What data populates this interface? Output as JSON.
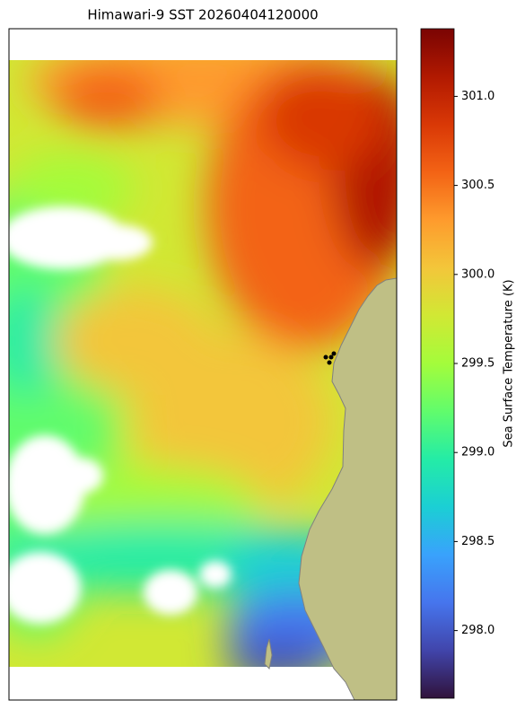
{
  "title": "Himawari-9 SST 20260404120000",
  "colorbar": {
    "label": "Sea Surface Temperature (K)",
    "colormap": "turbo",
    "lim": [
      297.62,
      301.38
    ],
    "ticks": [
      {
        "value": 298,
        "label": "298.0"
      },
      {
        "value": 298.5,
        "label": "298.5"
      },
      {
        "value": 299,
        "label": "299.0"
      },
      {
        "value": 299.5,
        "label": "299.5"
      },
      {
        "value": 300,
        "label": "300.0"
      },
      {
        "value": 300.5,
        "label": "300.5"
      },
      {
        "value": 301,
        "label": "301.0"
      }
    ]
  }
}
